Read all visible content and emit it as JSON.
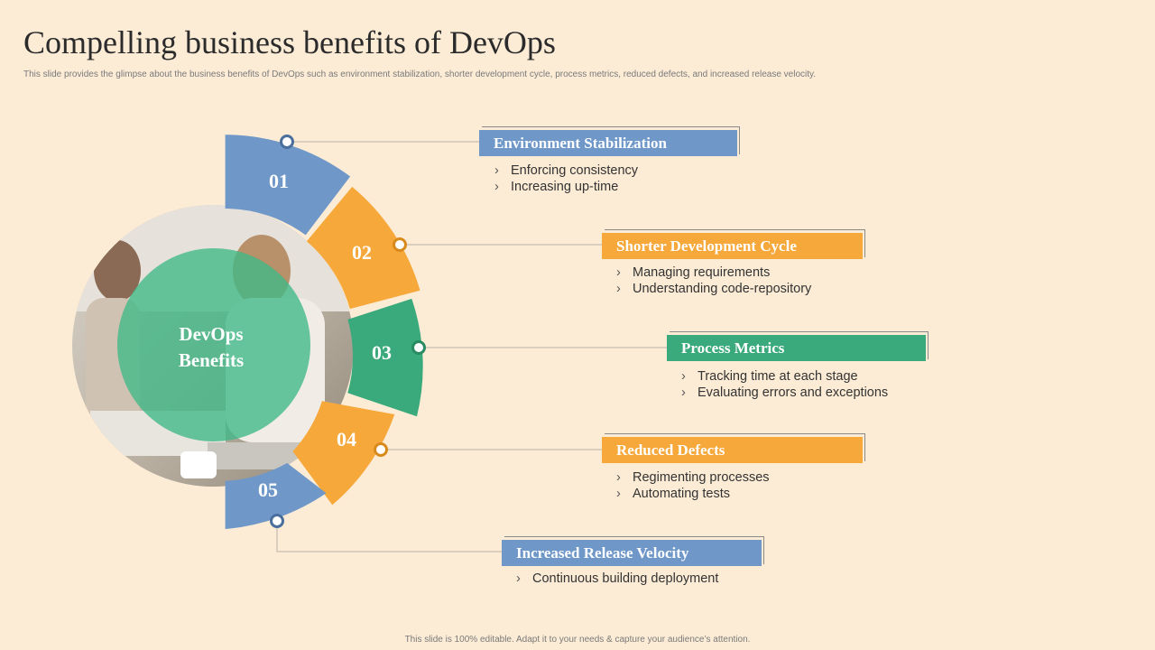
{
  "header": {
    "title": "Compelling business benefits of DevOps",
    "subtitle": "This slide provides the glimpse about the business benefits of DevOps such as environment stabilization, shorter development cycle, process metrics, reduced defects, and increased release velocity."
  },
  "center": {
    "line1": "DevOps",
    "line2": "Benefits"
  },
  "colors": {
    "blue": "#6f98c9",
    "orange": "#f7a83b",
    "green": "#3aa97c",
    "background": "#fcecd6"
  },
  "benefits": [
    {
      "number": "01",
      "title": "Environment Stabilization",
      "color": "blue",
      "points": [
        "Enforcing consistency",
        "Increasing up-time"
      ]
    },
    {
      "number": "02",
      "title": "Shorter Development Cycle",
      "color": "orange",
      "points": [
        "Managing requirements",
        "Understanding code-repository"
      ]
    },
    {
      "number": "03",
      "title": "Process Metrics",
      "color": "green",
      "points": [
        "Tracking time at each stage",
        "Evaluating errors and exceptions"
      ]
    },
    {
      "number": "04",
      "title": "Reduced Defects",
      "color": "orange",
      "points": [
        "Regimenting processes",
        "Automating tests"
      ]
    },
    {
      "number": "05",
      "title": "Increased Release Velocity",
      "color": "blue",
      "points": [
        "Continuous building deployment"
      ]
    }
  ],
  "footer": {
    "text": "This slide is 100% editable.  Adapt it to your needs & capture your audience’s attention."
  }
}
